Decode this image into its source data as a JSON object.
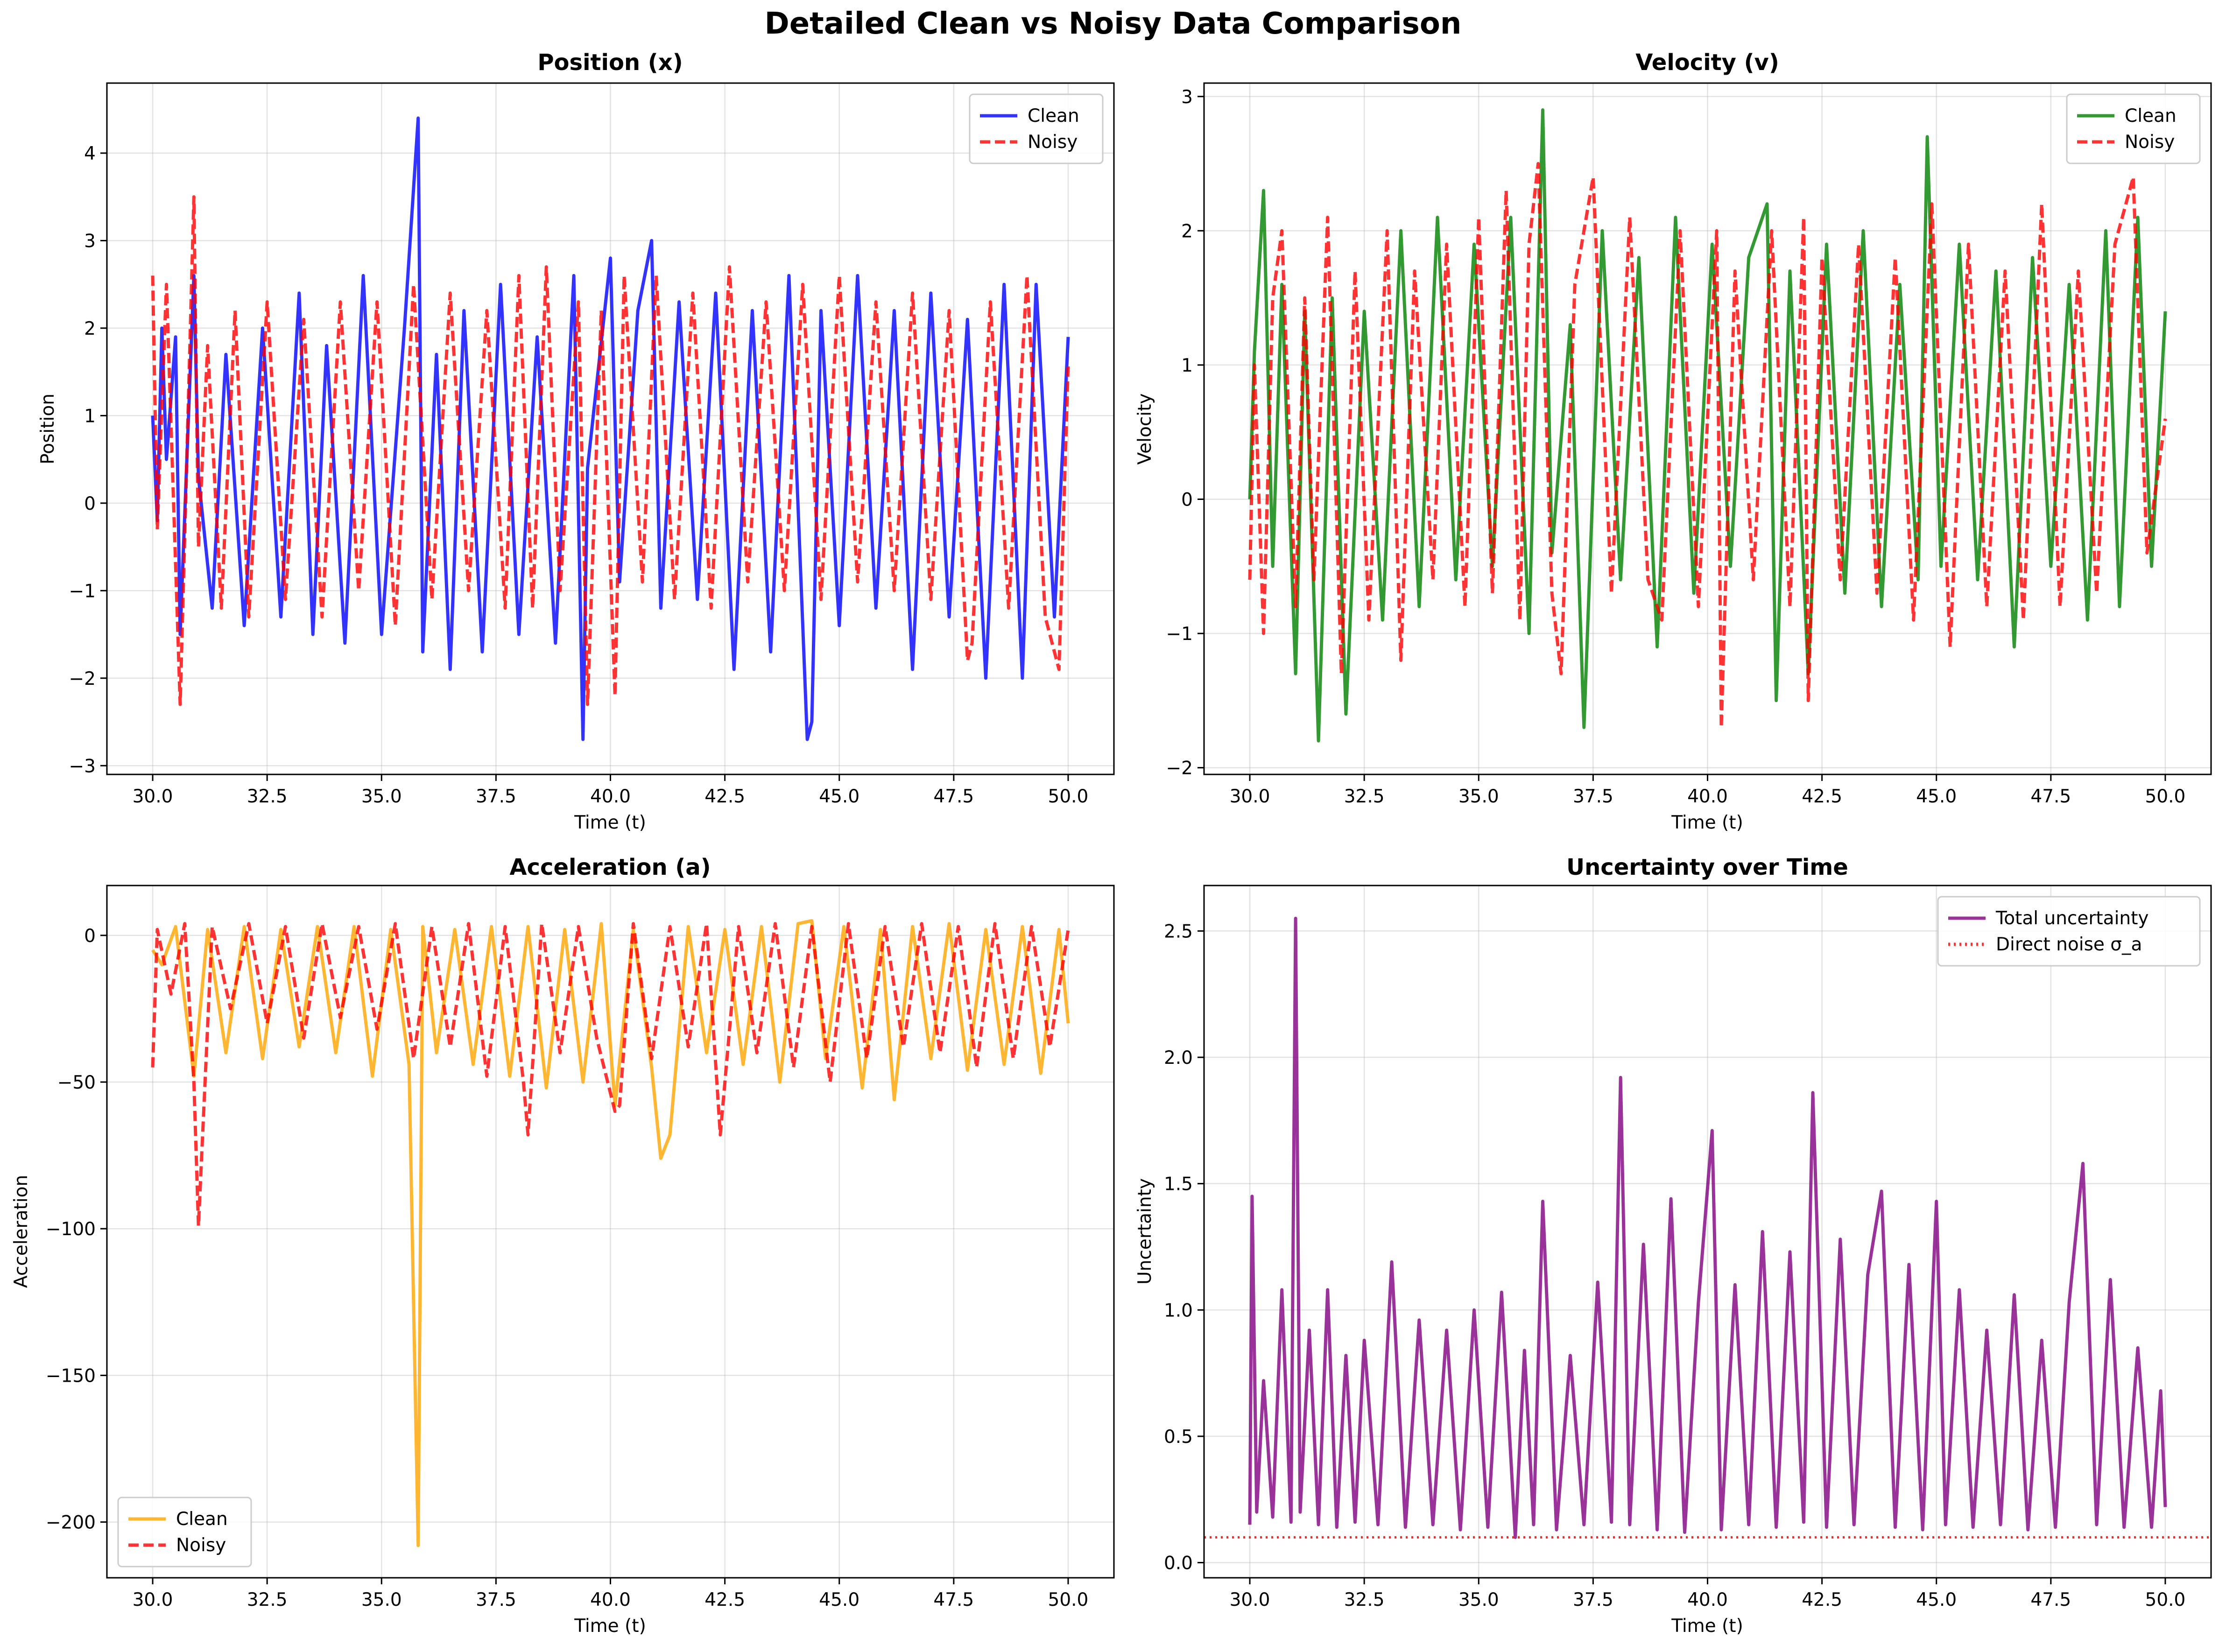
{
  "figure": {
    "suptitle": "Detailed Clean vs Noisy Data Comparison"
  },
  "chart_data": [
    {
      "type": "line",
      "title": "Position (x)",
      "xlabel": "Time (t)",
      "ylabel": "Position",
      "xlim": [
        29.0,
        51.0
      ],
      "ylim": [
        -3.1,
        4.8
      ],
      "x_ticks": [
        "30.0",
        "32.5",
        "35.0",
        "37.5",
        "40.0",
        "42.5",
        "45.0",
        "47.5",
        "50.0"
      ],
      "y_ticks": [
        "−3",
        "−2",
        "−1",
        "0",
        "1",
        "2",
        "3",
        "4"
      ],
      "grid": true,
      "legend_position": "upper right",
      "series": [
        {
          "name": "Clean",
          "color": "#0000ff",
          "style": "solid",
          "x": [
            30.0,
            30.1,
            30.2,
            30.3,
            30.5,
            30.6,
            30.9,
            31.0,
            31.3,
            31.6,
            32.0,
            32.4,
            32.8,
            33.2,
            33.5,
            33.8,
            34.2,
            34.6,
            35.0,
            35.5,
            35.8,
            35.9,
            36.2,
            36.5,
            36.8,
            37.2,
            37.6,
            38.0,
            38.4,
            38.8,
            39.2,
            39.4,
            39.5,
            40.0,
            40.2,
            40.6,
            40.9,
            41.1,
            41.5,
            41.9,
            42.3,
            42.7,
            43.1,
            43.5,
            43.9,
            44.3,
            44.4,
            44.6,
            45.0,
            45.4,
            45.8,
            46.2,
            46.6,
            47.0,
            47.4,
            47.8,
            48.2,
            48.6,
            49.0,
            49.3,
            49.7,
            50.0
          ],
          "y": [
            1.0,
            -0.2,
            2.0,
            0.5,
            1.9,
            -1.5,
            2.6,
            0.3,
            -1.2,
            1.7,
            -1.4,
            2.0,
            -1.3,
            2.4,
            -1.5,
            1.8,
            -1.6,
            2.6,
            -1.5,
            2.0,
            4.4,
            -1.7,
            1.7,
            -1.9,
            2.2,
            -1.7,
            2.5,
            -1.5,
            1.9,
            -1.6,
            2.6,
            -2.7,
            0.4,
            2.8,
            -0.9,
            2.2,
            3.0,
            -1.2,
            2.3,
            -1.1,
            2.4,
            -1.9,
            2.2,
            -1.7,
            2.6,
            -2.7,
            -2.5,
            2.2,
            -1.4,
            2.6,
            -1.2,
            2.2,
            -1.9,
            2.4,
            -1.3,
            2.1,
            -2.0,
            2.5,
            -2.0,
            2.5,
            -1.3,
            1.9
          ]
        },
        {
          "name": "Noisy",
          "color": "#ff0000",
          "style": "dashed",
          "x": [
            30.0,
            30.1,
            30.3,
            30.6,
            30.9,
            31.0,
            31.2,
            31.5,
            31.8,
            32.1,
            32.5,
            32.9,
            33.3,
            33.7,
            34.1,
            34.5,
            34.9,
            35.3,
            35.7,
            36.1,
            36.5,
            36.9,
            37.3,
            37.7,
            38.0,
            38.3,
            38.6,
            38.9,
            39.3,
            39.5,
            39.8,
            40.1,
            40.3,
            40.7,
            41.0,
            41.4,
            41.8,
            42.2,
            42.6,
            43.0,
            43.4,
            43.8,
            44.2,
            44.6,
            45.0,
            45.4,
            45.8,
            46.2,
            46.6,
            47.0,
            47.4,
            47.8,
            47.9,
            48.3,
            48.7,
            49.1,
            49.5,
            49.8,
            50.0
          ],
          "y": [
            2.6,
            -0.3,
            2.5,
            -2.3,
            3.5,
            -0.5,
            1.8,
            -1.2,
            2.2,
            -1.3,
            2.3,
            -1.1,
            2.1,
            -1.3,
            2.3,
            -1.0,
            2.3,
            -1.4,
            2.5,
            -1.1,
            2.4,
            -1.0,
            2.2,
            -1.2,
            2.6,
            -1.2,
            2.7,
            -1.0,
            2.3,
            -2.3,
            2.2,
            -2.2,
            2.6,
            -0.9,
            2.6,
            -1.1,
            2.4,
            -1.2,
            2.7,
            -0.9,
            2.3,
            -1.0,
            2.5,
            -1.1,
            2.6,
            -0.9,
            2.3,
            -1.0,
            2.4,
            -1.1,
            2.2,
            -1.8,
            -1.6,
            2.3,
            -1.2,
            2.6,
            -1.3,
            -1.9,
            1.6
          ]
        }
      ]
    },
    {
      "type": "line",
      "title": "Velocity (v)",
      "xlabel": "Time (t)",
      "ylabel": "Velocity",
      "xlim": [
        29.0,
        51.0
      ],
      "ylim": [
        -2.05,
        3.1
      ],
      "x_ticks": [
        "30.0",
        "32.5",
        "35.0",
        "37.5",
        "40.0",
        "42.5",
        "45.0",
        "47.5",
        "50.0"
      ],
      "y_ticks": [
        "−2",
        "−1",
        "0",
        "1",
        "2",
        "3"
      ],
      "grid": true,
      "legend_position": "upper right",
      "series": [
        {
          "name": "Clean",
          "color": "#008000",
          "style": "solid",
          "x": [
            30.0,
            30.1,
            30.3,
            30.5,
            30.7,
            31.0,
            31.2,
            31.5,
            31.8,
            32.1,
            32.5,
            32.9,
            33.3,
            33.7,
            34.1,
            34.5,
            34.9,
            35.3,
            35.7,
            36.1,
            36.4,
            36.6,
            37.0,
            37.3,
            37.7,
            38.1,
            38.5,
            38.9,
            39.3,
            39.7,
            40.1,
            40.5,
            40.9,
            41.3,
            41.5,
            41.8,
            42.2,
            42.6,
            43.0,
            43.4,
            43.8,
            44.2,
            44.6,
            44.8,
            45.1,
            45.5,
            45.9,
            46.3,
            46.7,
            47.1,
            47.5,
            47.9,
            48.3,
            48.7,
            49.0,
            49.4,
            49.7,
            50.0
          ],
          "y": [
            0.0,
            1.1,
            2.3,
            -0.5,
            1.6,
            -1.3,
            1.4,
            -1.8,
            1.5,
            -1.6,
            1.4,
            -0.9,
            2.0,
            -0.8,
            2.1,
            -0.6,
            1.9,
            -0.5,
            2.1,
            -1.0,
            2.9,
            -0.4,
            1.3,
            -1.7,
            2.0,
            -0.6,
            1.8,
            -1.1,
            2.1,
            -0.7,
            1.9,
            -0.5,
            1.8,
            2.2,
            -1.5,
            1.7,
            -1.3,
            1.9,
            -0.7,
            2.0,
            -0.8,
            1.6,
            -0.6,
            2.7,
            -0.5,
            1.9,
            -0.6,
            1.7,
            -1.1,
            1.8,
            -0.5,
            1.6,
            -0.9,
            2.0,
            -0.8,
            2.1,
            -0.5,
            1.4
          ]
        },
        {
          "name": "Noisy",
          "color": "#ff0000",
          "style": "dashed",
          "x": [
            30.0,
            30.1,
            30.3,
            30.5,
            30.7,
            31.0,
            31.2,
            31.4,
            31.7,
            32.0,
            32.3,
            32.6,
            33.0,
            33.3,
            33.6,
            34.0,
            34.3,
            34.7,
            35.0,
            35.3,
            35.6,
            35.9,
            36.1,
            36.3,
            36.6,
            36.8,
            37.1,
            37.5,
            37.9,
            38.3,
            38.7,
            39.0,
            39.4,
            39.8,
            40.2,
            40.3,
            40.6,
            41.0,
            41.4,
            41.8,
            42.1,
            42.2,
            42.5,
            42.9,
            43.3,
            43.7,
            44.1,
            44.5,
            44.9,
            45.3,
            45.7,
            46.1,
            46.5,
            46.9,
            47.3,
            47.7,
            48.1,
            48.5,
            48.9,
            49.3,
            49.6,
            50.0
          ],
          "y": [
            -0.6,
            1.0,
            -1.0,
            1.5,
            2.0,
            -0.8,
            1.5,
            -0.6,
            2.1,
            -1.3,
            1.7,
            -0.9,
            2.0,
            -1.2,
            1.7,
            -0.6,
            1.9,
            -0.8,
            2.1,
            -0.7,
            2.3,
            -0.9,
            1.9,
            2.5,
            -0.7,
            -1.3,
            1.6,
            2.4,
            -0.7,
            2.1,
            -0.6,
            -0.9,
            2.0,
            -0.8,
            2.0,
            -1.7,
            1.7,
            -0.6,
            2.0,
            -0.8,
            2.1,
            -1.5,
            1.8,
            -0.6,
            1.9,
            -0.7,
            1.8,
            -0.9,
            2.2,
            -1.1,
            1.9,
            -0.8,
            1.7,
            -0.9,
            2.2,
            -0.8,
            1.7,
            -0.7,
            1.9,
            2.4,
            -0.4,
            0.6
          ]
        }
      ]
    },
    {
      "type": "line",
      "title": "Acceleration (a)",
      "xlabel": "Time (t)",
      "ylabel": "Acceleration",
      "xlim": [
        29.0,
        51.0
      ],
      "ylim": [
        -219,
        17
      ],
      "x_ticks": [
        "30.0",
        "32.5",
        "35.0",
        "37.5",
        "40.0",
        "42.5",
        "45.0",
        "47.5",
        "50.0"
      ],
      "y_ticks": [
        "−200",
        "−150",
        "−100",
        "−50",
        "0"
      ],
      "grid": true,
      "legend_position": "lower left",
      "series": [
        {
          "name": "Clean",
          "color": "#ffa500",
          "style": "solid",
          "x": [
            30.0,
            30.2,
            30.5,
            30.9,
            31.2,
            31.6,
            32.0,
            32.4,
            32.8,
            33.2,
            33.6,
            34.0,
            34.4,
            34.8,
            35.2,
            35.6,
            35.8,
            35.9,
            36.2,
            36.6,
            37.0,
            37.4,
            37.8,
            38.2,
            38.6,
            39.0,
            39.4,
            39.8,
            40.1,
            40.5,
            40.9,
            41.1,
            41.3,
            41.7,
            42.1,
            42.5,
            42.9,
            43.3,
            43.7,
            44.1,
            44.4,
            44.7,
            45.1,
            45.5,
            45.9,
            46.2,
            46.6,
            47.0,
            47.4,
            47.8,
            48.2,
            48.6,
            49.0,
            49.4,
            49.8,
            50.0
          ],
          "y": [
            -5,
            -10,
            3,
            -48,
            2,
            -40,
            3,
            -42,
            2,
            -38,
            3,
            -40,
            3,
            -48,
            2,
            -44,
            -208,
            3,
            -40,
            2,
            -44,
            3,
            -48,
            3,
            -52,
            2,
            -50,
            4,
            -58,
            2,
            -45,
            -76,
            -68,
            3,
            -40,
            2,
            -44,
            3,
            -50,
            4,
            5,
            -42,
            3,
            -52,
            2,
            -56,
            3,
            -42,
            4,
            -46,
            2,
            -44,
            3,
            -47,
            2,
            -30
          ]
        },
        {
          "name": "Noisy",
          "color": "#ff0000",
          "style": "dashed",
          "x": [
            30.0,
            30.1,
            30.4,
            30.7,
            30.9,
            31.0,
            31.3,
            31.7,
            32.1,
            32.5,
            32.9,
            33.3,
            33.7,
            34.1,
            34.5,
            34.9,
            35.3,
            35.7,
            36.1,
            36.5,
            36.9,
            37.3,
            37.7,
            38.1,
            38.2,
            38.5,
            38.9,
            39.3,
            39.7,
            40.1,
            40.2,
            40.5,
            40.9,
            41.3,
            41.7,
            42.1,
            42.4,
            42.8,
            43.2,
            43.6,
            44.0,
            44.4,
            44.8,
            45.2,
            45.6,
            46.0,
            46.4,
            46.8,
            47.2,
            47.6,
            48.0,
            48.4,
            48.8,
            49.2,
            49.6,
            50.0
          ],
          "y": [
            -45,
            2,
            -20,
            4,
            -50,
            -99,
            3,
            -25,
            4,
            -30,
            3,
            -35,
            4,
            -28,
            3,
            -32,
            4,
            -42,
            3,
            -38,
            4,
            -48,
            3,
            -50,
            -68,
            4,
            -40,
            3,
            -35,
            -60,
            -58,
            4,
            -42,
            3,
            -38,
            4,
            -68,
            3,
            -40,
            4,
            -45,
            3,
            -50,
            4,
            -42,
            3,
            -38,
            4,
            -40,
            3,
            -45,
            4,
            -42,
            3,
            -38,
            2
          ]
        }
      ]
    },
    {
      "type": "line",
      "title": "Uncertainty over Time",
      "xlabel": "Time (t)",
      "ylabel": "Uncertainty",
      "xlim": [
        29.0,
        51.0
      ],
      "ylim": [
        -0.06,
        2.68
      ],
      "x_ticks": [
        "30.0",
        "32.5",
        "35.0",
        "37.5",
        "40.0",
        "42.5",
        "45.0",
        "47.5",
        "50.0"
      ],
      "y_ticks": [
        "0.0",
        "0.5",
        "1.0",
        "1.5",
        "2.0",
        "2.5"
      ],
      "grid": true,
      "legend_position": "upper right",
      "series": [
        {
          "name": "Total uncertainty",
          "color": "#800080",
          "style": "solid",
          "x": [
            30.0,
            30.05,
            30.15,
            30.3,
            30.5,
            30.7,
            30.9,
            31.0,
            31.1,
            31.3,
            31.5,
            31.7,
            31.9,
            32.1,
            32.3,
            32.5,
            32.8,
            33.1,
            33.4,
            33.7,
            34.0,
            34.3,
            34.6,
            34.9,
            35.2,
            35.5,
            35.8,
            36.0,
            36.2,
            36.4,
            36.7,
            37.0,
            37.3,
            37.6,
            37.9,
            38.1,
            38.3,
            38.6,
            38.9,
            39.2,
            39.5,
            39.8,
            40.1,
            40.3,
            40.6,
            40.9,
            41.2,
            41.5,
            41.8,
            42.1,
            42.3,
            42.6,
            42.9,
            43.2,
            43.5,
            43.8,
            44.1,
            44.4,
            44.7,
            45.0,
            45.2,
            45.5,
            45.8,
            46.1,
            46.4,
            46.7,
            47.0,
            47.3,
            47.6,
            47.9,
            48.2,
            48.5,
            48.8,
            49.1,
            49.4,
            49.7,
            49.9,
            50.0
          ],
          "y": [
            0.15,
            1.45,
            0.2,
            0.72,
            0.18,
            1.08,
            0.16,
            2.55,
            0.2,
            0.92,
            0.15,
            1.08,
            0.14,
            0.82,
            0.16,
            0.88,
            0.15,
            1.19,
            0.14,
            0.96,
            0.15,
            0.92,
            0.13,
            1.0,
            0.14,
            1.07,
            0.1,
            0.84,
            0.15,
            1.43,
            0.13,
            0.82,
            0.15,
            1.11,
            0.16,
            1.92,
            0.15,
            1.26,
            0.13,
            1.44,
            0.12,
            1.03,
            1.71,
            0.13,
            1.1,
            0.15,
            1.31,
            0.14,
            1.23,
            0.16,
            1.86,
            0.14,
            1.28,
            0.15,
            1.14,
            1.47,
            0.14,
            1.18,
            0.13,
            1.43,
            0.15,
            1.08,
            0.14,
            0.92,
            0.15,
            1.06,
            0.13,
            0.88,
            0.14,
            1.03,
            1.58,
            0.15,
            1.12,
            0.14,
            0.85,
            0.14,
            0.68,
            0.22
          ]
        },
        {
          "name": "Direct noise σ_a",
          "color": "#ff0000",
          "style": "dotted",
          "constant": 0.1
        }
      ]
    }
  ]
}
